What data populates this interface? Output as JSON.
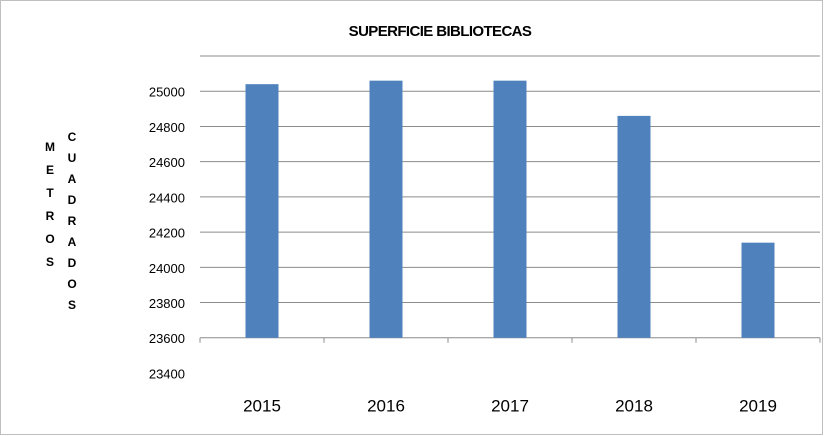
{
  "chart_data": {
    "type": "bar",
    "title": "SUPERFICIE BIBLIOTECAS",
    "y_label": [
      "METROS",
      "CUADRADOS"
    ],
    "categories": [
      "2015",
      "2016",
      "2017",
      "2018",
      "2019"
    ],
    "values": [
      25040,
      25060,
      25060,
      24860,
      24140
    ],
    "color": "#4f81bd",
    "ylim": [
      23400,
      25200
    ],
    "yticks": [
      23400,
      23600,
      23800,
      24000,
      24200,
      24400,
      24600,
      24800,
      25000
    ],
    "x_axis_crosses": 23600,
    "grid": true
  }
}
